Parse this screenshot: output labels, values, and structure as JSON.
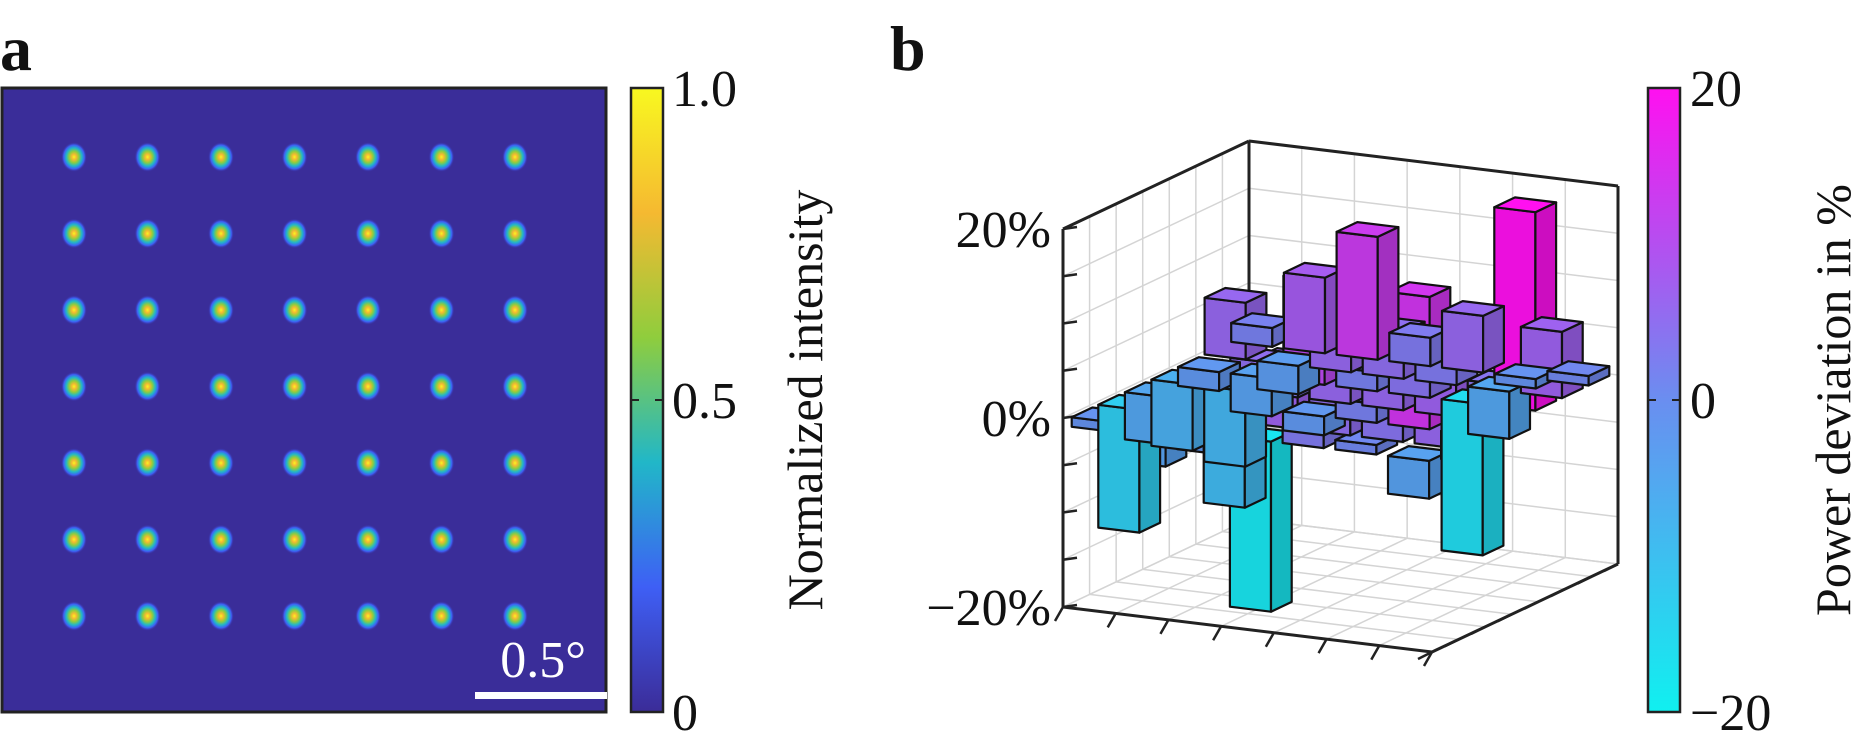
{
  "panels": {
    "a": {
      "label": "a"
    },
    "b": {
      "label": "b"
    }
  },
  "chart_data": [
    {
      "type": "heatmap",
      "panel": "a",
      "description_of_content": "7 x 7 array of focused spots",
      "grid_rows": 7,
      "grid_cols": 7,
      "spot_peak_intensity": [
        [
          1.0,
          1.0,
          1.0,
          1.0,
          1.0,
          1.0,
          1.0
        ],
        [
          1.0,
          1.0,
          1.0,
          1.0,
          1.0,
          1.0,
          1.0
        ],
        [
          1.0,
          1.0,
          1.0,
          1.0,
          1.0,
          1.0,
          1.0
        ],
        [
          1.0,
          1.0,
          1.0,
          1.0,
          1.0,
          1.0,
          1.0
        ],
        [
          1.0,
          1.0,
          1.0,
          1.0,
          1.0,
          1.0,
          1.0
        ],
        [
          1.0,
          1.0,
          1.0,
          1.0,
          1.0,
          1.0,
          1.0
        ],
        [
          1.0,
          1.0,
          1.0,
          1.0,
          1.0,
          1.0,
          1.0
        ]
      ],
      "background_intensity": 0.0,
      "scale_bar_label": "0.5°",
      "colorbar": {
        "label": "Normalized intensity",
        "ticks": [
          0,
          0.5,
          1.0
        ],
        "tick_labels": [
          "0",
          "0.5",
          "1.0"
        ],
        "range": [
          0,
          1.0
        ],
        "colors": [
          "#3b2c98",
          "#3e5ff5",
          "#21b7c8",
          "#8fcd3d",
          "#f5b931",
          "#f8f820"
        ]
      }
    },
    {
      "type": "bar3d",
      "panel": "b",
      "z_ticks": [
        -20,
        0,
        20
      ],
      "z_tick_labels": [
        "−20%",
        "0%",
        "20%"
      ],
      "zlim": [
        -20,
        20
      ],
      "grid": true,
      "bars": [
        {
          "row": 0,
          "col": 0,
          "value": 2
        },
        {
          "row": 0,
          "col": 1,
          "value": 8
        },
        {
          "row": 0,
          "col": 2,
          "value": 13
        },
        {
          "row": 0,
          "col": 3,
          "value": 3
        },
        {
          "row": 0,
          "col": 4,
          "value": 6
        },
        {
          "row": 0,
          "col": 5,
          "value": -1
        },
        {
          "row": 0,
          "col": 6,
          "value": 1
        },
        {
          "row": 1,
          "col": 0,
          "value": 6
        },
        {
          "row": 1,
          "col": 1,
          "value": -3
        },
        {
          "row": 1,
          "col": 2,
          "value": 6
        },
        {
          "row": 1,
          "col": 3,
          "value": 5
        },
        {
          "row": 1,
          "col": 4,
          "value": 3
        },
        {
          "row": 1,
          "col": 5,
          "value": -5
        },
        {
          "row": 1,
          "col": 6,
          "value": 7
        },
        {
          "row": 2,
          "col": 0,
          "value": -2
        },
        {
          "row": 2,
          "col": 1,
          "value": -4
        },
        {
          "row": 2,
          "col": 2,
          "value": 11
        },
        {
          "row": 2,
          "col": 3,
          "value": 2
        },
        {
          "row": 2,
          "col": 4,
          "value": 4
        },
        {
          "row": 2,
          "col": 5,
          "value": -16
        },
        {
          "row": 2,
          "col": 6,
          "value": 21
        },
        {
          "row": 3,
          "col": 0,
          "value": -7
        },
        {
          "row": 3,
          "col": 1,
          "value": -8
        },
        {
          "row": 3,
          "col": 2,
          "value": 3
        },
        {
          "row": 3,
          "col": 3,
          "value": 6
        },
        {
          "row": 3,
          "col": 4,
          "value": 6
        },
        {
          "row": 3,
          "col": 5,
          "value": 7
        },
        {
          "row": 3,
          "col": 6,
          "value": 4
        },
        {
          "row": 4,
          "col": 0,
          "value": -5
        },
        {
          "row": 4,
          "col": 1,
          "value": 3
        },
        {
          "row": 4,
          "col": 2,
          "value": 5
        },
        {
          "row": 4,
          "col": 3,
          "value": -2
        },
        {
          "row": 4,
          "col": 4,
          "value": 2
        },
        {
          "row": 4,
          "col": 5,
          "value": 14
        },
        {
          "row": 4,
          "col": 6,
          "value": -3
        },
        {
          "row": 5,
          "col": 0,
          "value": -13
        },
        {
          "row": 5,
          "col": 1,
          "value": 2
        },
        {
          "row": 5,
          "col": 2,
          "value": -9
        },
        {
          "row": 5,
          "col": 3,
          "value": 7
        },
        {
          "row": 5,
          "col": 4,
          "value": 5
        },
        {
          "row": 5,
          "col": 5,
          "value": 4
        },
        {
          "row": 5,
          "col": 6,
          "value": 6
        },
        {
          "row": 6,
          "col": 0,
          "value": -1
        },
        {
          "row": 6,
          "col": 1,
          "value": -4
        },
        {
          "row": 6,
          "col": 2,
          "value": -2
        },
        {
          "row": 6,
          "col": 3,
          "value": -18
        },
        {
          "row": 6,
          "col": 4,
          "value": 3
        },
        {
          "row": 6,
          "col": 5,
          "value": 1
        },
        {
          "row": 6,
          "col": 6,
          "value": -4
        }
      ],
      "colorbar": {
        "label": "Power deviation in %",
        "ticks": [
          -20,
          0,
          20
        ],
        "tick_labels": [
          "−20",
          "0",
          "20"
        ],
        "range": [
          -20,
          20
        ],
        "colors": [
          "#10f0f0",
          "#6a8ef0",
          "#ff10f0"
        ]
      }
    }
  ]
}
